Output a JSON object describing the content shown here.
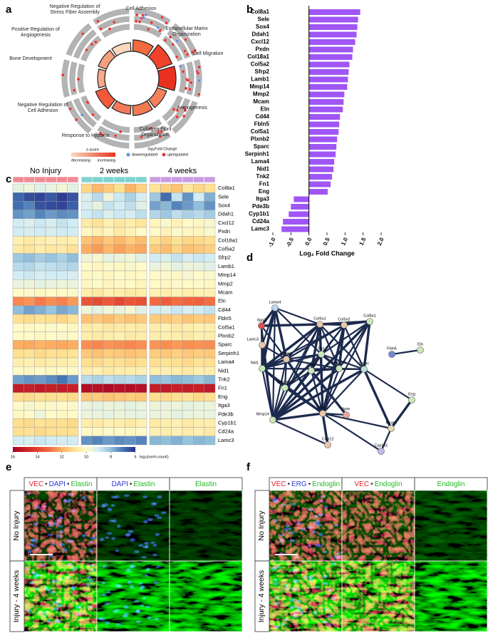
{
  "panel_labels": [
    "a",
    "b",
    "c",
    "d",
    "e",
    "f"
  ],
  "go_plot": {
    "terms": [
      "Negative Regulation of Stress Fiber Assembly",
      "Cell Adhesion",
      "Extracellular Matrix Organization",
      "Cell Migration",
      "Angiogenesis",
      "Collagen Fibril Organization",
      "Response to Hypoxia",
      "Negative Regulation of Cell Adhesion",
      "Bone Development",
      "Positive Regulation of Angiogenesis"
    ],
    "legend": {
      "zscore_title": "z-score",
      "zscore_low": "decreasing",
      "zscore_high": "increasing",
      "fc_title": "log₂Fold Change",
      "down": "downregulated",
      "up": "upregulated",
      "down_color": "#6b8fd6",
      "up_color": "#e03a3a"
    }
  },
  "chart_data": [
    {
      "type": "bar",
      "orientation": "horizontal",
      "categories": [
        "Col8a1",
        "Sele",
        "Sox4",
        "Ddah1",
        "Cxcl12",
        "Pxdn",
        "Col18a1",
        "Col5a2",
        "Sfrp2",
        "Lamb1",
        "Mmp14",
        "Mmp2",
        "Mcam",
        "Eln",
        "Cd44",
        "Fbln5",
        "Col5a1",
        "Plxnb2",
        "Sparc",
        "Serpinh1",
        "Lama4",
        "Nid1",
        "Tnk2",
        "Fn1",
        "Eng",
        "Itga3",
        "Pde3b",
        "Cyp1b1",
        "Cd24a",
        "Lamc3"
      ],
      "values": [
        1.42,
        1.36,
        1.34,
        1.32,
        1.28,
        1.22,
        1.2,
        1.12,
        1.1,
        1.08,
        1.06,
        0.98,
        0.96,
        0.94,
        0.86,
        0.84,
        0.82,
        0.78,
        0.76,
        0.74,
        0.7,
        0.68,
        0.64,
        0.6,
        0.52,
        -0.42,
        -0.5,
        -0.56,
        -0.72,
        -0.76
      ],
      "color": "#a055f5",
      "xlim": [
        -1,
        2
      ],
      "xticks": [
        {
          "value": -1,
          "label": "-1.0"
        },
        {
          "value": -0.5,
          "label": "-0.5"
        },
        {
          "value": 0,
          "label": "0.0"
        },
        {
          "value": 0.5,
          "label": "0.5"
        },
        {
          "value": 1,
          "label": "1.0"
        },
        {
          "value": 1.5,
          "label": "1.5"
        },
        {
          "value": 2,
          "label": "2.0"
        }
      ],
      "xlabel": "Log₂ Fold Change"
    },
    {
      "type": "heatmap",
      "rows": [
        "Col8a1",
        "Sele",
        "Sox4",
        "Ddah1",
        "Cxcl12",
        "Pxdn",
        "Col18a1",
        "Col5a2",
        "Sfrp2",
        "Lamb1",
        "Mmp14",
        "Mmp2",
        "Mcam",
        "Eln",
        "Cd44",
        "Fbln5",
        "Col5a1",
        "Plxnb2",
        "Sparc",
        "Serpinh1",
        "Lama4",
        "Nid1",
        "Tnk2",
        "Fn1",
        "Eng",
        "Itga3",
        "Pde3b",
        "Cyp1b1",
        "Cd24a",
        "Lamc3"
      ],
      "groups": [
        {
          "name": "No Injury",
          "color": "#f08a94"
        },
        {
          "name": "2 weeks",
          "color": "#7fd3cf"
        },
        {
          "name": "4 weeks",
          "color": "#c89ce0"
        }
      ],
      "zlim": [
        6,
        16
      ],
      "colorbar": {
        "label": "log₂(norm.count)",
        "ticks": [
          16,
          14,
          12,
          10,
          8,
          6
        ]
      },
      "values": [
        [
          9.4,
          9.6,
          9.3,
          9.5,
          9.7,
          9.4,
          11.2,
          11.8,
          11.5,
          11.0,
          11.9,
          11.3,
          10.9,
          11.3,
          11.6,
          10.8,
          11.2,
          11.0
        ],
        [
          6.8,
          6.4,
          6.3,
          6.6,
          6.2,
          6.5,
          9.2,
          8.6,
          9.6,
          8.9,
          8.4,
          9.1,
          8.2,
          6.9,
          8.8,
          7.4,
          9.0,
          7.8
        ],
        [
          6.9,
          7.2,
          6.5,
          6.4,
          6.3,
          6.7,
          9.1,
          9.4,
          8.8,
          9.0,
          8.7,
          9.3,
          7.6,
          7.9,
          7.2,
          7.5,
          8.0,
          7.4
        ],
        [
          7.4,
          7.6,
          7.2,
          7.5,
          7.3,
          7.4,
          9.0,
          8.8,
          9.2,
          8.9,
          9.1,
          8.7,
          8.5,
          8.2,
          8.7,
          8.4,
          8.6,
          8.3
        ],
        [
          9.0,
          9.2,
          8.9,
          9.1,
          8.8,
          9.0,
          10.6,
          10.9,
          10.4,
          10.7,
          10.5,
          10.8,
          10.2,
          9.9,
          10.3,
          10.0,
          10.1,
          9.8
        ],
        [
          9.0,
          9.1,
          9.0,
          9.1,
          9.0,
          9.0,
          10.1,
          10.4,
          10.2,
          10.6,
          10.3,
          10.0,
          10.0,
          10.3,
          9.9,
          10.1,
          10.2,
          9.9
        ],
        [
          10.4,
          10.6,
          10.5,
          10.3,
          10.5,
          10.4,
          11.6,
          11.9,
          11.5,
          11.8,
          11.4,
          11.7,
          11.0,
          11.3,
          10.9,
          11.2,
          11.1,
          11.0
        ],
        [
          10.6,
          10.8,
          10.5,
          10.7,
          10.6,
          10.9,
          12.0,
          12.3,
          11.8,
          12.2,
          11.9,
          12.1,
          11.4,
          11.7,
          11.2,
          11.6,
          11.5,
          11.3
        ],
        [
          8.2,
          8.0,
          8.3,
          8.1,
          8.4,
          8.0,
          9.6,
          9.8,
          9.4,
          9.5,
          9.7,
          9.3,
          9.0,
          9.2,
          8.8,
          9.1,
          8.9,
          9.0
        ],
        [
          8.6,
          8.5,
          8.8,
          8.7,
          8.6,
          8.5,
          10.0,
          10.2,
          9.9,
          10.1,
          9.8,
          10.0,
          9.5,
          9.7,
          9.4,
          9.6,
          9.5,
          9.3
        ],
        [
          9.0,
          8.9,
          9.1,
          9.0,
          9.0,
          9.1,
          10.1,
          10.0,
          10.2,
          10.0,
          10.1,
          10.0,
          10.0,
          9.9,
          10.1,
          9.8,
          10.0,
          9.9
        ],
        [
          9.5,
          9.6,
          9.4,
          9.5,
          9.6,
          9.5,
          10.1,
          10.0,
          10.2,
          10.1,
          10.0,
          10.2,
          10.0,
          10.1,
          9.9,
          10.0,
          10.0,
          10.1
        ],
        [
          10.0,
          9.9,
          10.1,
          10.0,
          10.0,
          9.9,
          10.5,
          10.6,
          10.4,
          10.5,
          10.6,
          10.5,
          10.4,
          10.5,
          10.3,
          10.5,
          10.4,
          10.4
        ],
        [
          12.6,
          12.4,
          12.8,
          12.5,
          12.7,
          12.3,
          13.6,
          13.8,
          13.5,
          13.9,
          13.6,
          13.7,
          13.1,
          13.4,
          13.0,
          13.2,
          13.3,
          13.0
        ],
        [
          8.0,
          7.6,
          7.8,
          8.1,
          7.7,
          7.9,
          9.6,
          9.4,
          9.7,
          9.5,
          9.8,
          9.3,
          9.0,
          9.2,
          8.9,
          9.1,
          9.0,
          8.8
        ],
        [
          11.0,
          11.1,
          10.9,
          11.0,
          11.2,
          10.9,
          11.6,
          11.5,
          11.7,
          11.4,
          11.6,
          11.5,
          11.4,
          11.5,
          11.3,
          11.6,
          11.4,
          11.5
        ],
        [
          10.0,
          10.1,
          10.0,
          9.9,
          10.0,
          10.1,
          10.6,
          10.5,
          10.7,
          10.6,
          10.5,
          10.6,
          10.5,
          10.4,
          10.6,
          10.5,
          10.4,
          10.5
        ],
        [
          10.0,
          10.0,
          10.1,
          10.0,
          9.9,
          10.0,
          10.5,
          10.6,
          10.5,
          10.4,
          10.6,
          10.5,
          10.5,
          10.4,
          10.5,
          10.6,
          10.4,
          10.5
        ],
        [
          12.0,
          12.1,
          11.9,
          12.0,
          12.1,
          12.0,
          12.5,
          12.6,
          12.4,
          12.5,
          12.6,
          12.5,
          12.4,
          12.5,
          12.3,
          12.5,
          12.4,
          12.5
        ],
        [
          11.0,
          10.9,
          11.1,
          11.0,
          11.0,
          10.9,
          11.5,
          11.6,
          11.4,
          11.5,
          11.6,
          11.5,
          11.4,
          11.5,
          11.3,
          11.5,
          11.4,
          11.5
        ],
        [
          10.5,
          10.4,
          10.6,
          10.5,
          10.5,
          10.4,
          11.0,
          11.1,
          10.9,
          11.0,
          11.1,
          11.0,
          11.0,
          10.9,
          11.0,
          11.1,
          10.9,
          11.0
        ],
        [
          10.0,
          10.1,
          10.0,
          10.1,
          10.0,
          10.0,
          10.5,
          10.4,
          10.6,
          10.5,
          10.5,
          10.4,
          10.5,
          10.4,
          10.5,
          10.6,
          10.4,
          10.5
        ],
        [
          7.6,
          7.4,
          7.5,
          7.3,
          7.0,
          7.5,
          8.6,
          8.4,
          8.7,
          8.5,
          8.6,
          8.4,
          8.0,
          8.1,
          7.9,
          8.0,
          8.2,
          7.9
        ],
        [
          15.1,
          15.0,
          15.2,
          15.0,
          15.1,
          15.0,
          15.6,
          15.5,
          15.7,
          15.5,
          15.6,
          15.5,
          15.1,
          15.2,
          15.0,
          15.1,
          15.0,
          15.2
        ],
        [
          11.0,
          11.1,
          10.9,
          11.0,
          11.0,
          11.1,
          11.5,
          11.4,
          11.6,
          11.5,
          11.4,
          11.5,
          11.0,
          11.1,
          11.0,
          10.9,
          11.1,
          11.0
        ],
        [
          10.0,
          9.8,
          10.1,
          9.9,
          10.0,
          9.9,
          9.5,
          9.4,
          9.6,
          9.5,
          9.4,
          9.5,
          9.6,
          9.5,
          9.6,
          9.4,
          9.5,
          9.6
        ],
        [
          10.1,
          10.0,
          9.6,
          10.0,
          10.1,
          10.0,
          9.6,
          9.5,
          9.4,
          9.6,
          9.5,
          9.5,
          9.5,
          9.6,
          9.4,
          9.5,
          9.6,
          9.5
        ],
        [
          11.0,
          11.1,
          10.9,
          11.0,
          11.0,
          11.1,
          10.5,
          10.6,
          10.4,
          10.5,
          10.6,
          10.4,
          10.6,
          10.5,
          10.4,
          10.6,
          10.5,
          10.5
        ],
        [
          11.0,
          10.9,
          11.1,
          11.0,
          11.0,
          11.0,
          10.0,
          10.1,
          9.9,
          10.0,
          10.1,
          10.0,
          10.4,
          10.5,
          10.3,
          10.5,
          10.4,
          10.6
        ],
        [
          9.0,
          9.1,
          8.9,
          9.0,
          9.1,
          9.0,
          7.4,
          7.2,
          7.5,
          7.3,
          7.4,
          7.2,
          7.9,
          8.0,
          7.8,
          8.1,
          7.9,
          8.0
        ]
      ]
    }
  ],
  "network": {
    "nodes": [
      "Lama4",
      "Itga3",
      "Col5a1",
      "Col5a2",
      "Col8a1",
      "Lamc3",
      "Lamb1",
      "Fn1",
      "Cd44",
      "Col18a1",
      "Sparc",
      "Nid1",
      "Serpinh1",
      "Mmp14",
      "Mmp2",
      "Sele",
      "Eng",
      "Mcam",
      "Cxcl12",
      "Cyp1b1",
      "Fbln5",
      "Eln"
    ]
  },
  "panel_e": {
    "separator": "•",
    "columns": [
      [
        {
          "text": "VEC",
          "color": "#e0202a"
        },
        {
          "text": "DAPI",
          "color": "#2b3bd6"
        },
        {
          "text": "Elastin",
          "color": "#22b822"
        }
      ],
      [
        {
          "text": "DAPI",
          "color": "#2b3bd6"
        },
        {
          "text": "Elastin",
          "color": "#22b822"
        }
      ],
      [
        {
          "text": "Elastin",
          "color": "#22b822"
        }
      ]
    ],
    "rows": [
      "No Injury",
      "Injury - 4 weeks"
    ]
  },
  "panel_f": {
    "separator": "•",
    "columns": [
      [
        {
          "text": "VEC",
          "color": "#e0202a"
        },
        {
          "text": "ERG",
          "color": "#2b3bd6"
        },
        {
          "text": "Endoglin",
          "color": "#22b822"
        }
      ],
      [
        {
          "text": "VEC",
          "color": "#e0202a"
        },
        {
          "text": "Endoglin",
          "color": "#22b822"
        }
      ],
      [
        {
          "text": "Endoglin",
          "color": "#22b822"
        }
      ]
    ],
    "rows": [
      "No Injury",
      "Injury - 4 weeks"
    ]
  }
}
